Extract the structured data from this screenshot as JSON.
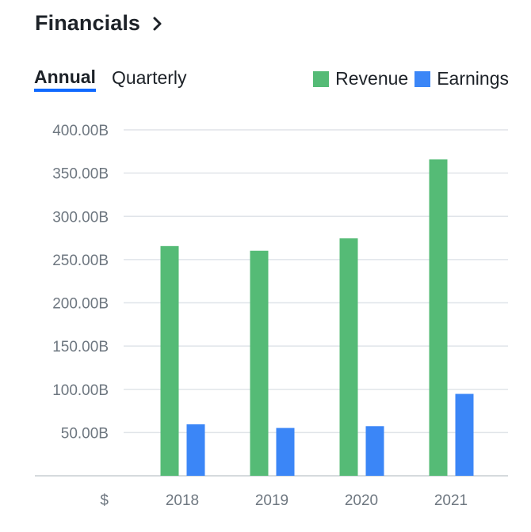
{
  "header": {
    "title": "Financials"
  },
  "tabs": [
    {
      "label": "Annual",
      "active": true
    },
    {
      "label": "Quarterly",
      "active": false
    }
  ],
  "legend": [
    {
      "label": "Revenue",
      "color": "#55bb76"
    },
    {
      "label": "Earnings",
      "color": "#3b86f7"
    }
  ],
  "chart_data": {
    "type": "bar",
    "title": "Financials",
    "categories": [
      "2018",
      "2019",
      "2020",
      "2021"
    ],
    "series": [
      {
        "name": "Revenue",
        "color": "#55bb76",
        "values": [
          265.6,
          260.2,
          274.5,
          365.8
        ]
      },
      {
        "name": "Earnings",
        "color": "#3b86f7",
        "values": [
          59.5,
          55.3,
          57.4,
          94.7
        ]
      }
    ],
    "yticks": [
      {
        "value": 50,
        "label": "50.00B"
      },
      {
        "value": 100,
        "label": "100.00B"
      },
      {
        "value": 150,
        "label": "150.00B"
      },
      {
        "value": 200,
        "label": "200.00B"
      },
      {
        "value": 250,
        "label": "250.00B"
      },
      {
        "value": 300,
        "label": "300.00B"
      },
      {
        "value": 350,
        "label": "350.00B"
      },
      {
        "value": 400,
        "label": "400.00B"
      }
    ],
    "ylim": [
      0,
      400
    ],
    "unit_label": "$",
    "grid": true,
    "legend_position": "top-right"
  }
}
